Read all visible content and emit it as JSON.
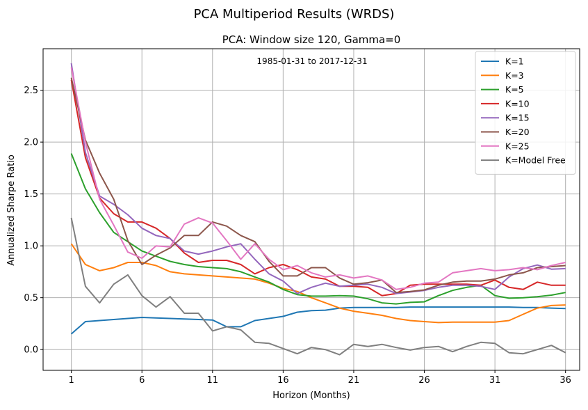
{
  "figure_title": "PCA Multiperiod Results (WRDS)",
  "chart_data": {
    "type": "line",
    "title": "PCA: Window size 120, Gamma=0",
    "annotation": "1985-01-31 to 2017-12-31",
    "xlabel": "Horizon (Months)",
    "ylabel": "Annualized Sharpe Ratio",
    "xlim": [
      -1,
      37
    ],
    "ylim": [
      -0.2,
      2.9
    ],
    "xticks": [
      1,
      6,
      11,
      16,
      21,
      26,
      31,
      36
    ],
    "yticks": [
      0.0,
      0.5,
      1.0,
      1.5,
      2.0,
      2.5
    ],
    "ytick_labels": [
      "0.0",
      "0.5",
      "1.0",
      "1.5",
      "2.0",
      "2.5"
    ],
    "grid": true,
    "legend_position": "top-right",
    "x": [
      1,
      2,
      3,
      4,
      5,
      6,
      7,
      8,
      9,
      10,
      11,
      12,
      13,
      14,
      15,
      16,
      17,
      18,
      19,
      20,
      21,
      22,
      23,
      24,
      25,
      26,
      27,
      28,
      29,
      30,
      31,
      32,
      33,
      34,
      35,
      36
    ],
    "series": [
      {
        "name": "K=1",
        "color": "#1f77b4",
        "values": [
          0.15,
          0.27,
          0.28,
          0.29,
          0.3,
          0.31,
          0.305,
          0.3,
          0.295,
          0.29,
          0.285,
          0.22,
          0.22,
          0.28,
          0.3,
          0.32,
          0.36,
          0.375,
          0.38,
          0.4,
          0.405,
          0.405,
          0.405,
          0.405,
          0.41,
          0.41,
          0.41,
          0.41,
          0.41,
          0.41,
          0.41,
          0.41,
          0.405,
          0.405,
          0.4,
          0.395
        ]
      },
      {
        "name": "K=3",
        "color": "#ff7f0e",
        "values": [
          1.02,
          0.82,
          0.76,
          0.79,
          0.84,
          0.84,
          0.81,
          0.75,
          0.73,
          0.72,
          0.71,
          0.7,
          0.69,
          0.68,
          0.64,
          0.59,
          0.56,
          0.5,
          0.45,
          0.4,
          0.37,
          0.35,
          0.33,
          0.3,
          0.28,
          0.27,
          0.26,
          0.265,
          0.265,
          0.265,
          0.265,
          0.28,
          0.34,
          0.4,
          0.425,
          0.43
        ]
      },
      {
        "name": "K=5",
        "color": "#2ca02c",
        "values": [
          1.89,
          1.55,
          1.32,
          1.13,
          1.04,
          0.95,
          0.9,
          0.85,
          0.82,
          0.8,
          0.79,
          0.78,
          0.75,
          0.7,
          0.65,
          0.58,
          0.53,
          0.515,
          0.515,
          0.52,
          0.515,
          0.49,
          0.45,
          0.44,
          0.455,
          0.46,
          0.52,
          0.57,
          0.6,
          0.62,
          0.52,
          0.495,
          0.5,
          0.51,
          0.525,
          0.55
        ]
      },
      {
        "name": "K=10",
        "color": "#d62728",
        "values": [
          2.6,
          1.85,
          1.46,
          1.31,
          1.23,
          1.23,
          1.17,
          1.07,
          0.93,
          0.84,
          0.86,
          0.86,
          0.82,
          0.73,
          0.79,
          0.82,
          0.77,
          0.7,
          0.68,
          0.61,
          0.61,
          0.6,
          0.52,
          0.54,
          0.62,
          0.63,
          0.63,
          0.63,
          0.63,
          0.62,
          0.67,
          0.6,
          0.58,
          0.65,
          0.62,
          0.62
        ]
      },
      {
        "name": "K=15",
        "color": "#9467bd",
        "values": [
          2.76,
          1.9,
          1.48,
          1.4,
          1.3,
          1.17,
          1.1,
          1.07,
          0.95,
          0.92,
          0.95,
          0.99,
          1.02,
          0.87,
          0.73,
          0.66,
          0.54,
          0.6,
          0.64,
          0.61,
          0.62,
          0.63,
          0.6,
          0.54,
          0.555,
          0.57,
          0.6,
          0.62,
          0.62,
          0.61,
          0.58,
          0.7,
          0.78,
          0.815,
          0.775,
          0.78
        ]
      },
      {
        "name": "K=20",
        "color": "#8c564b",
        "values": [
          2.62,
          2.02,
          1.7,
          1.45,
          1.05,
          0.82,
          0.91,
          0.98,
          1.1,
          1.1,
          1.23,
          1.19,
          1.1,
          1.04,
          0.85,
          0.71,
          0.71,
          0.79,
          0.79,
          0.69,
          0.63,
          0.645,
          0.67,
          0.55,
          0.56,
          0.575,
          0.62,
          0.65,
          0.66,
          0.66,
          0.68,
          0.72,
          0.74,
          0.79,
          0.8,
          0.81
        ]
      },
      {
        "name": "K=25",
        "color": "#e377c2",
        "values": [
          2.72,
          2.0,
          1.45,
          1.2,
          0.94,
          0.88,
          1.0,
          0.99,
          1.21,
          1.27,
          1.22,
          1.05,
          0.87,
          1.02,
          0.87,
          0.77,
          0.81,
          0.74,
          0.7,
          0.72,
          0.69,
          0.71,
          0.67,
          0.58,
          0.6,
          0.64,
          0.65,
          0.74,
          0.76,
          0.78,
          0.76,
          0.77,
          0.79,
          0.77,
          0.81,
          0.84
        ]
      },
      {
        "name": "K=Model Free",
        "color": "#7f7f7f",
        "values": [
          1.27,
          0.61,
          0.45,
          0.63,
          0.72,
          0.52,
          0.41,
          0.51,
          0.35,
          0.35,
          0.18,
          0.22,
          0.19,
          0.07,
          0.06,
          0.01,
          -0.04,
          0.02,
          0.0,
          -0.05,
          0.05,
          0.03,
          0.05,
          0.02,
          -0.005,
          0.02,
          0.03,
          -0.02,
          0.03,
          0.07,
          0.06,
          -0.03,
          -0.04,
          0.0,
          0.04,
          -0.03
        ]
      }
    ]
  }
}
